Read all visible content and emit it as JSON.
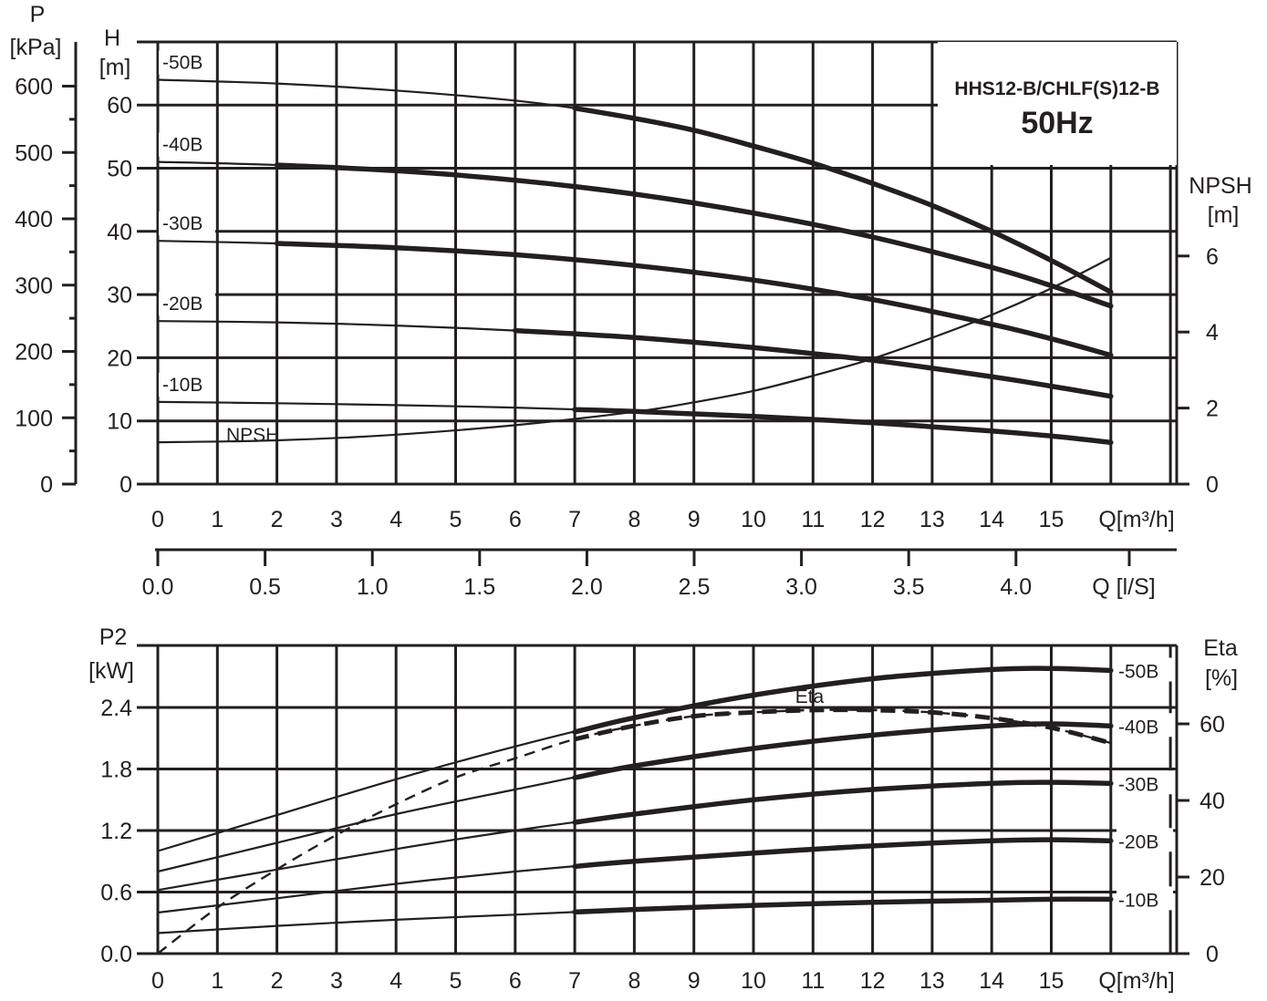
{
  "colors": {
    "ink": "#231f20",
    "background": "#ffffff"
  },
  "title": {
    "model": "HHS12-B/CHLF(S)12-B",
    "frequency": "50Hz"
  },
  "top_axes": {
    "p_label": "P",
    "p_unit": "[kPa]",
    "h_label": "H",
    "h_unit": "[m]",
    "npsh_label": "NPSH",
    "npsh_unit": "[m]",
    "q_label": "Q[m³/h]",
    "q_ls_label": "Q [l/S]",
    "p_ticks": [
      "0",
      "100",
      "200",
      "300",
      "400",
      "500",
      "600"
    ],
    "h_ticks": [
      "0",
      "10",
      "20",
      "30",
      "40",
      "50",
      "60"
    ],
    "npsh_ticks": [
      "0",
      "2",
      "4",
      "6"
    ],
    "q_ticks": [
      "0",
      "1",
      "2",
      "3",
      "4",
      "5",
      "6",
      "7",
      "8",
      "9",
      "10",
      "11",
      "12",
      "13",
      "14",
      "15"
    ],
    "q_ls_ticks": [
      "0.0",
      "0.5",
      "1.0",
      "1.5",
      "2.0",
      "2.5",
      "3.0",
      "3.5",
      "4.0"
    ]
  },
  "bottom_axes": {
    "p2_label": "P2",
    "p2_unit": "[kW]",
    "eta_label": "Eta",
    "eta_unit": "[%]",
    "q_label": "Q[m³/h]",
    "p2_ticks": [
      "0.0",
      "0.6",
      "1.2",
      "1.8",
      "2.4"
    ],
    "eta_ticks": [
      "0",
      "20",
      "40",
      "60"
    ],
    "q_ticks": [
      "0",
      "1",
      "2",
      "3",
      "4",
      "5",
      "6",
      "7",
      "8",
      "9",
      "10",
      "11",
      "12",
      "13",
      "14",
      "15"
    ]
  },
  "chart_data": [
    {
      "type": "line",
      "x_label": "Q[m³/h]",
      "y_label": "H [m]",
      "y2_label": "NPSH [m]",
      "xlim": [
        0,
        17
      ],
      "ylim": [
        0,
        70
      ],
      "y2lim": [
        0,
        6
      ],
      "grid": true,
      "series": [
        {
          "name": "-50B",
          "x": [
            0,
            2,
            4,
            6,
            7,
            8,
            9,
            10,
            11,
            12,
            13,
            14,
            15,
            16
          ],
          "y": [
            64,
            63.4,
            62.3,
            60.7,
            59.5,
            57.9,
            56,
            53.5,
            50.8,
            47.6,
            44.1,
            40,
            35.4,
            30.4
          ],
          "operating_range": [
            7,
            16
          ]
        },
        {
          "name": "-40B",
          "x": [
            0,
            2,
            4,
            6,
            8,
            10,
            12,
            14,
            15,
            16
          ],
          "y": [
            51,
            50.5,
            49.6,
            48.1,
            45.9,
            42.9,
            39.1,
            34.3,
            31.4,
            28.2
          ],
          "operating_range": [
            2,
            16
          ]
        },
        {
          "name": "-30B",
          "x": [
            0,
            2,
            4,
            6,
            8,
            10,
            12,
            14,
            15,
            16
          ],
          "y": [
            38.5,
            38.1,
            37.4,
            36.3,
            34.6,
            32.3,
            29.2,
            25.3,
            23,
            20.4
          ],
          "operating_range": [
            2,
            16
          ]
        },
        {
          "name": "-20B",
          "x": [
            0,
            2,
            4,
            6,
            8,
            10,
            12,
            14,
            15,
            16
          ],
          "y": [
            25.8,
            25.6,
            25.1,
            24.3,
            23.2,
            21.6,
            19.6,
            17,
            15.5,
            13.9
          ],
          "operating_range": [
            6,
            16
          ]
        },
        {
          "name": "-10B",
          "x": [
            0,
            2,
            4,
            6,
            8,
            10,
            12,
            14,
            15,
            16
          ],
          "y": [
            13,
            12.8,
            12.5,
            12.1,
            11.5,
            10.7,
            9.7,
            8.4,
            7.6,
            6.6
          ],
          "operating_range": [
            7,
            16
          ]
        },
        {
          "name": "NPSH",
          "axis": "right",
          "x": [
            0,
            2,
            4,
            6,
            8,
            9,
            10,
            11,
            12,
            13,
            14,
            15,
            16
          ],
          "y": [
            1.1,
            1.15,
            1.3,
            1.55,
            1.9,
            2.15,
            2.45,
            2.85,
            3.3,
            3.85,
            4.45,
            5.15,
            5.95
          ]
        }
      ],
      "secondary_x": {
        "label": "Q [l/S]",
        "ticks": [
          0,
          0.5,
          1.0,
          1.5,
          2.0,
          2.5,
          3.0,
          3.5,
          4.0
        ]
      },
      "pressure_scale": {
        "label": "P [kPa]",
        "ticks": [
          0,
          100,
          200,
          300,
          400,
          500,
          600
        ]
      }
    },
    {
      "type": "line",
      "x_label": "Q[m³/h]",
      "y_label": "P2 [kW]",
      "y2_label": "Eta [%]",
      "xlim": [
        0,
        17
      ],
      "ylim": [
        0,
        3.0
      ],
      "y2lim": [
        0,
        70
      ],
      "grid": true,
      "series": [
        {
          "name": "-50B",
          "x": [
            0,
            2,
            4,
            6,
            8,
            10,
            12,
            14,
            15,
            16
          ],
          "y": [
            1.0,
            1.35,
            1.7,
            2.02,
            2.3,
            2.52,
            2.68,
            2.77,
            2.78,
            2.76
          ],
          "operating_range": [
            7,
            16
          ]
        },
        {
          "name": "-40B",
          "x": [
            0,
            2,
            4,
            6,
            8,
            10,
            12,
            14,
            15,
            16
          ],
          "y": [
            0.8,
            1.08,
            1.36,
            1.6,
            1.83,
            2.0,
            2.13,
            2.22,
            2.24,
            2.22
          ],
          "operating_range": [
            7,
            16
          ]
        },
        {
          "name": "-30B",
          "x": [
            0,
            2,
            4,
            6,
            8,
            10,
            12,
            14,
            15,
            16
          ],
          "y": [
            0.62,
            0.82,
            1.02,
            1.2,
            1.36,
            1.5,
            1.6,
            1.66,
            1.67,
            1.66
          ],
          "operating_range": [
            7,
            16
          ]
        },
        {
          "name": "-20B",
          "x": [
            0,
            2,
            4,
            6,
            8,
            10,
            12,
            14,
            15,
            16
          ],
          "y": [
            0.4,
            0.54,
            0.68,
            0.8,
            0.9,
            0.98,
            1.05,
            1.1,
            1.11,
            1.1
          ],
          "operating_range": [
            7,
            16
          ]
        },
        {
          "name": "-10B",
          "x": [
            0,
            2,
            4,
            6,
            8,
            10,
            12,
            14,
            15,
            16
          ],
          "y": [
            0.2,
            0.27,
            0.33,
            0.38,
            0.43,
            0.47,
            0.5,
            0.52,
            0.53,
            0.53
          ],
          "operating_range": [
            7,
            16
          ]
        },
        {
          "name": "Eta",
          "axis": "right",
          "style": "dashed",
          "x": [
            0,
            1,
            2,
            3,
            4,
            5,
            6,
            7,
            8,
            9,
            10,
            11,
            12,
            13,
            14,
            15,
            16
          ],
          "y": [
            0,
            12,
            22,
            31,
            39,
            46,
            51,
            56,
            59.5,
            62,
            63,
            63.6,
            63.6,
            63,
            61.5,
            59,
            55
          ],
          "operating_range": [
            7,
            16
          ]
        }
      ]
    }
  ]
}
